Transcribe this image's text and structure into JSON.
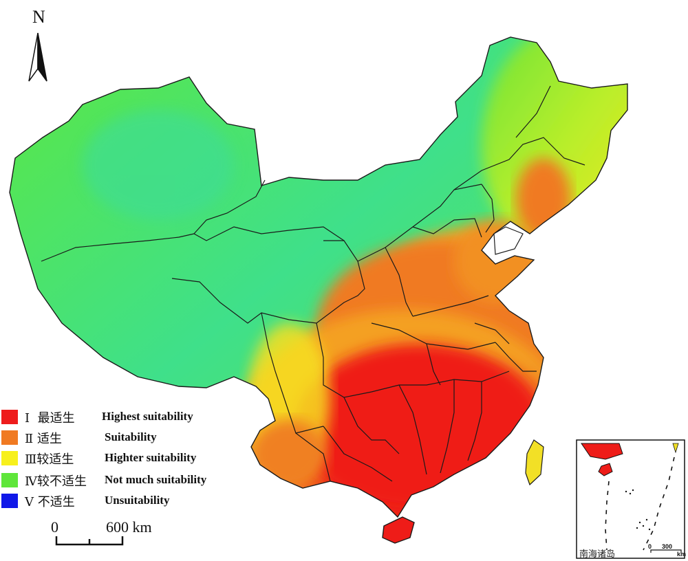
{
  "north_label": "N",
  "legend": [
    {
      "numeral": "Ⅰ",
      "cn": "最适生",
      "en": "Highest suitability",
      "color": "#ee1c1c"
    },
    {
      "numeral": "Ⅱ",
      "cn": "适生",
      "en": "Suitability",
      "color": "#f07a22"
    },
    {
      "numeral": "Ⅲ",
      "cn": "较适生",
      "en": "Highter suitability",
      "color": "#f7f01c"
    },
    {
      "numeral": "Ⅳ",
      "cn": "较不适生",
      "en": "Not much suitability",
      "color": "#5fe63a"
    },
    {
      "numeral": "Ⅴ",
      "cn": "不适生",
      "en": "Unsuitability",
      "color": "#1018e8"
    }
  ],
  "scale_bar": {
    "start": "0",
    "end": "600 km"
  },
  "inset": {
    "label": "南海诸岛",
    "scale_start": "0",
    "scale_end": "300",
    "scale_unit": "km"
  }
}
